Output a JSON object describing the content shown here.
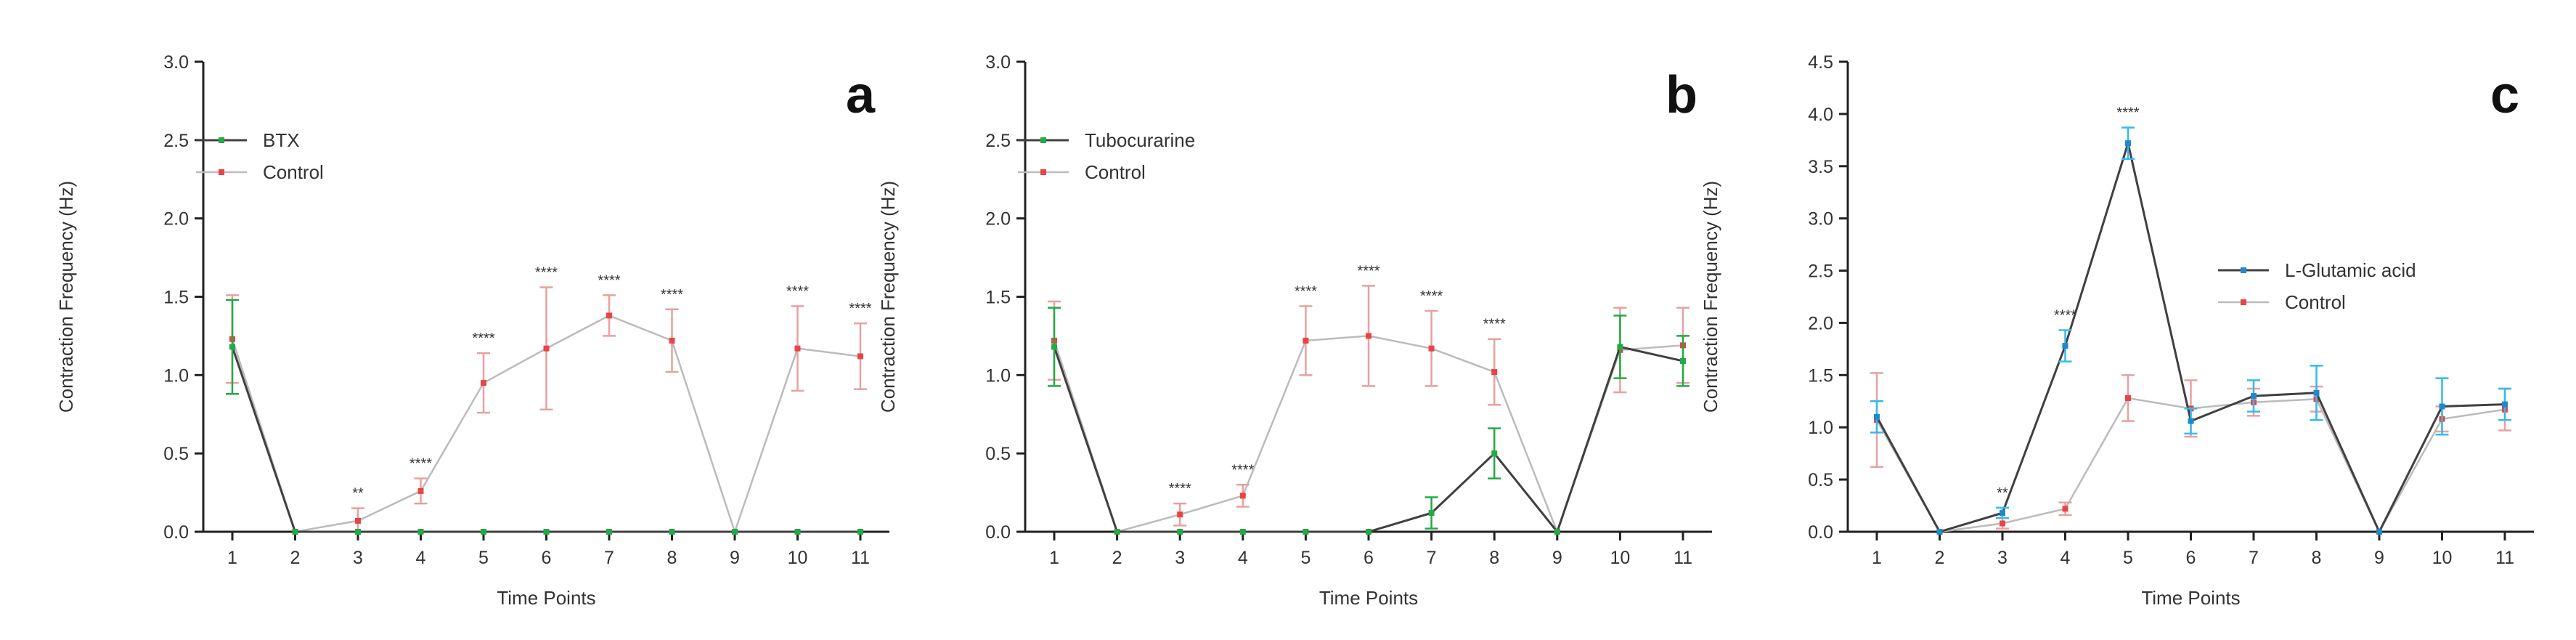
{
  "chart_data": [
    {
      "type": "line",
      "panel_letter": "a",
      "xlabel": "Time Points",
      "ylabel": "Contraction Frequency (Hz)",
      "x": [
        1,
        2,
        3,
        4,
        5,
        6,
        7,
        8,
        9,
        10,
        11
      ],
      "ylim": [
        0,
        3.0
      ],
      "yticks": [
        "0.0",
        "0.5",
        "1.0",
        "1.5",
        "2.0",
        "2.5",
        "3.0"
      ],
      "legend_position": "top-left",
      "series": [
        {
          "name": "BTX",
          "color": "#404040",
          "marker_color": "#22aa44",
          "error_color": "#22aa44",
          "values": [
            1.18,
            0,
            0,
            0,
            0,
            0,
            0,
            0,
            0,
            0,
            0
          ],
          "errors": [
            0.3,
            0,
            0,
            0,
            0,
            0,
            0,
            0,
            0,
            0,
            0
          ]
        },
        {
          "name": "Control",
          "color": "#bbbbbb",
          "marker_color": "#e84545",
          "error_color": "#e8a0a0",
          "values": [
            1.23,
            0,
            0.07,
            0.26,
            0.95,
            1.17,
            1.38,
            1.22,
            0,
            1.17,
            1.12
          ],
          "errors": [
            0.28,
            0,
            0.08,
            0.08,
            0.19,
            0.39,
            0.13,
            0.2,
            0,
            0.27,
            0.21
          ]
        }
      ],
      "annotations": [
        {
          "x": 3,
          "text": "**"
        },
        {
          "x": 4,
          "text": "****"
        },
        {
          "x": 5,
          "text": "****"
        },
        {
          "x": 6,
          "text": "****"
        },
        {
          "x": 7,
          "text": "****"
        },
        {
          "x": 8,
          "text": "****"
        },
        {
          "x": 10,
          "text": "****"
        },
        {
          "x": 11,
          "text": "****"
        }
      ]
    },
    {
      "type": "line",
      "panel_letter": "b",
      "xlabel": "Time Points",
      "ylabel": "Contraction Frequency (Hz)",
      "x": [
        1,
        2,
        3,
        4,
        5,
        6,
        7,
        8,
        9,
        10,
        11
      ],
      "ylim": [
        0,
        3.0
      ],
      "yticks": [
        "0.0",
        "0.5",
        "1.0",
        "1.5",
        "2.0",
        "2.5",
        "3.0"
      ],
      "legend_position": "top-left",
      "series": [
        {
          "name": "Tubocurarine",
          "color": "#404040",
          "marker_color": "#22aa44",
          "error_color": "#22aa44",
          "values": [
            1.18,
            0,
            0,
            0,
            0,
            0,
            0.12,
            0.5,
            0,
            1.18,
            1.09
          ],
          "errors": [
            0.25,
            0,
            0,
            0,
            0,
            0,
            0.1,
            0.16,
            0,
            0.2,
            0.16
          ]
        },
        {
          "name": "Control",
          "color": "#bbbbbb",
          "marker_color": "#e84545",
          "error_color": "#e8a0a0",
          "values": [
            1.22,
            0,
            0.11,
            0.23,
            1.22,
            1.25,
            1.17,
            1.02,
            0,
            1.16,
            1.19
          ],
          "errors": [
            0.25,
            0,
            0.07,
            0.07,
            0.22,
            0.32,
            0.24,
            0.21,
            0,
            0.27,
            0.24
          ]
        }
      ],
      "annotations": [
        {
          "x": 3,
          "text": "****"
        },
        {
          "x": 4,
          "text": "****"
        },
        {
          "x": 5,
          "text": "****"
        },
        {
          "x": 6,
          "text": "****"
        },
        {
          "x": 7,
          "text": "****"
        },
        {
          "x": 8,
          "text": "****"
        }
      ]
    },
    {
      "type": "line",
      "panel_letter": "c",
      "xlabel": "Time Points",
      "ylabel": "Contraction Frequency (Hz)",
      "x": [
        1,
        2,
        3,
        4,
        5,
        6,
        7,
        8,
        9,
        10,
        11
      ],
      "ylim": [
        0,
        4.5
      ],
      "yticks": [
        "0.0",
        "0.5",
        "1.0",
        "1.5",
        "2.0",
        "2.5",
        "3.0",
        "3.5",
        "4.0",
        "4.5"
      ],
      "legend_position": "center-right",
      "series": [
        {
          "name": "L-Glutamic acid",
          "color": "#404040",
          "marker_color": "#2288cc",
          "error_color": "#33bbee",
          "values": [
            1.1,
            0,
            0.18,
            1.78,
            3.72,
            1.06,
            1.3,
            1.33,
            0,
            1.2,
            1.22
          ],
          "errors": [
            0.15,
            0,
            0.05,
            0.15,
            0.15,
            0.12,
            0.15,
            0.26,
            0,
            0.27,
            0.15
          ]
        },
        {
          "name": "Control",
          "color": "#bbbbbb",
          "marker_color": "#e84545",
          "error_color": "#e8a0a0",
          "values": [
            1.07,
            0,
            0.08,
            0.22,
            1.28,
            1.18,
            1.24,
            1.27,
            0,
            1.08,
            1.17
          ],
          "errors": [
            0.45,
            0,
            0.05,
            0.06,
            0.22,
            0.27,
            0.13,
            0.12,
            0,
            0.12,
            0.2
          ]
        }
      ],
      "annotations": [
        {
          "x": 3,
          "text": "**"
        },
        {
          "x": 4,
          "text": "****"
        },
        {
          "x": 5,
          "text": "****"
        }
      ]
    }
  ]
}
